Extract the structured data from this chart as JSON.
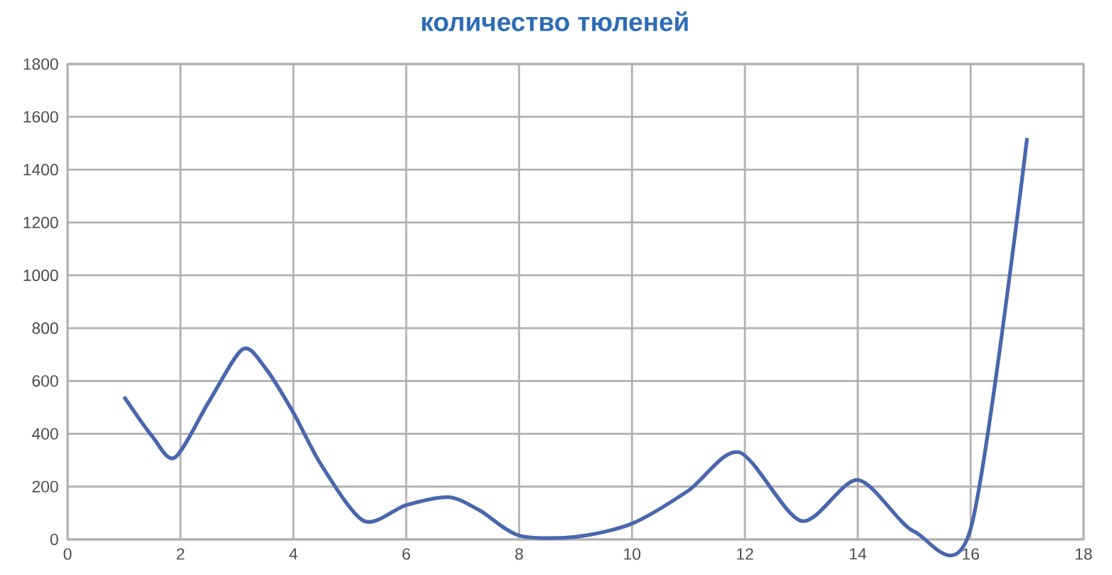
{
  "chart_data": {
    "type": "line",
    "title": "количество тюленей",
    "series": [
      {
        "color": "#4a67ad",
        "x": [
          1,
          1.5,
          1.9,
          2.5,
          3.1,
          3.5,
          4,
          4.5,
          5.25,
          6,
          6.75,
          7.3,
          8,
          9,
          10,
          11,
          11.9,
          13,
          14,
          15,
          16,
          17
        ],
        "values": [
          540,
          390,
          310,
          520,
          720,
          650,
          480,
          280,
          70,
          130,
          160,
          110,
          15,
          10,
          60,
          185,
          330,
          70,
          225,
          30,
          40,
          1520
        ]
      }
    ],
    "xlim": [
      0,
      18
    ],
    "ylim": [
      0,
      1800
    ],
    "xticks": [
      0,
      2,
      4,
      6,
      8,
      10,
      12,
      14,
      16,
      18
    ],
    "yticks": [
      0,
      200,
      400,
      600,
      800,
      1000,
      1200,
      1400,
      1600,
      1800
    ],
    "grid": true,
    "marker": "none",
    "line_style": "solid"
  }
}
